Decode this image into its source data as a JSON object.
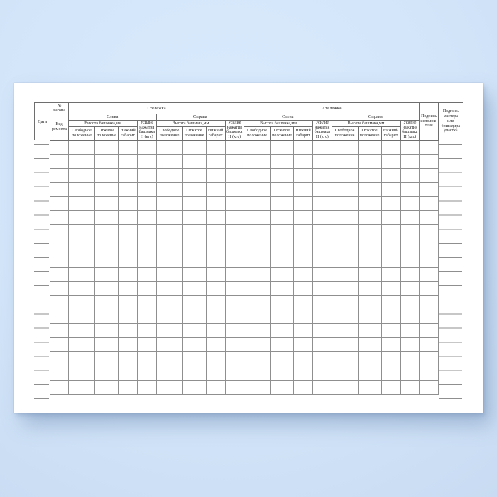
{
  "background": {
    "color_top": "#d9ebfc",
    "color_bottom": "#c8dbf2"
  },
  "sheet": {
    "color": "#ffffff"
  },
  "table": {
    "line_color_header": "#6e6e6e",
    "line_color_body": "#8f8f8f",
    "text_color": "#252525",
    "date_label": "Дата",
    "wagon_no_label": "№\nвагона",
    "repair_type_label": "Вид\nремонта",
    "bogie1_label": "1 тележка",
    "bogie2_label": "2 тележка",
    "left_label": "Слева",
    "right_label": "Справа",
    "height_group_label": "Высота башмака,мм",
    "free_position_label": "Свободное\nположение",
    "pressed_position_label": "Отжатое\nположение",
    "lower_gauge_label": "Нижний\nгабарит",
    "force_label": "Усилие\nнажатия\nбашмака\nН (кгс)",
    "executor_signature_label": "Подпись\nисполни-\nтеля",
    "master_signature_label": "Подпись\nмастера\nили\nбригадира\nучастка",
    "data_rows": 18,
    "data_columns": 20,
    "empty_cell_value": ""
  }
}
